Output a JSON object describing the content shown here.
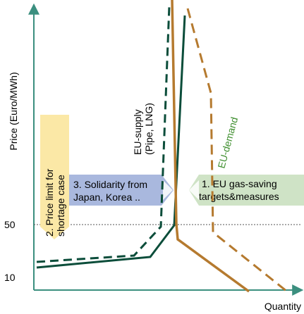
{
  "axes": {
    "y_label": "Price (Euro/MWh)",
    "x_label": "Quantity",
    "y_tick_50": "50",
    "y_tick_10": "10"
  },
  "curves": {
    "supply_label_line1": "EU-supply",
    "supply_label_line2": "(Pipe, LNG)",
    "demand_label": "EU-demand"
  },
  "boxes": {
    "price_limit_line1": "2. Price limit for",
    "price_limit_line2": "shortage case",
    "solidarity_line1": "3. Solidarity from",
    "solidarity_line2": "Japan, Korea ..",
    "gas_saving_line1": "1. EU gas-saving",
    "gas_saving_line2": "targets&measures"
  },
  "colors": {
    "supply": "#0b4d3a",
    "demand": "#b57a2f",
    "demand_label": "#3f8f2f",
    "yellow_box": "#fbe8a6",
    "blue_box": "#a9b8de",
    "green_box": "#cfe3c6",
    "axis": "#3b8f7f",
    "dotted": "#555555"
  },
  "icons": {
    "y_axis_arrow": "arrow-up-icon",
    "x_axis_arrow": "arrow-right-icon",
    "solidarity_arrow": "arrow-right-icon",
    "gas_saving_arrow": "arrow-left-icon"
  }
}
